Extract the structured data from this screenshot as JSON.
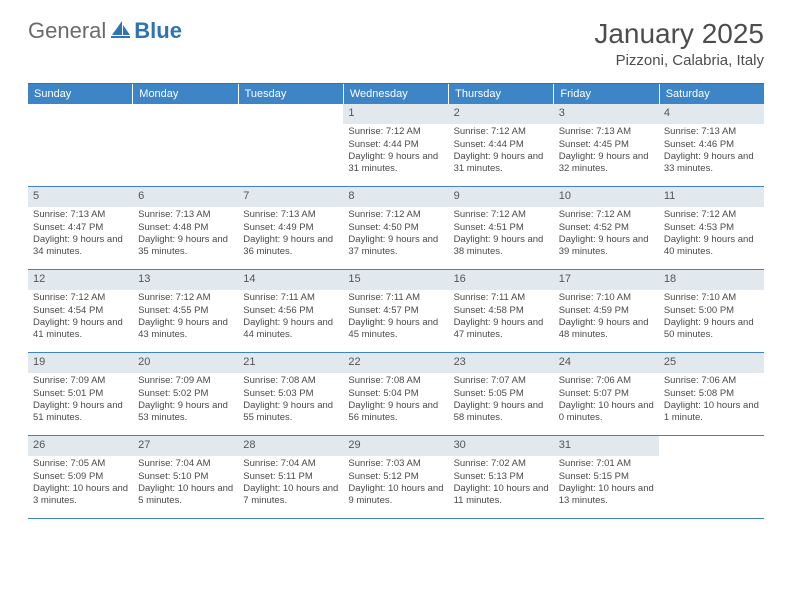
{
  "logo": {
    "general": "General",
    "blue": "Blue"
  },
  "title": "January 2025",
  "location": "Pizzoni, Calabria, Italy",
  "colors": {
    "header_bg": "#3d85c6",
    "border": "#2f73b5",
    "alt_row": "#e1e8ee",
    "text": "#4a4a4a"
  },
  "day_headers": [
    "Sunday",
    "Monday",
    "Tuesday",
    "Wednesday",
    "Thursday",
    "Friday",
    "Saturday"
  ],
  "weeks": [
    [
      null,
      null,
      null,
      {
        "n": "1",
        "sr": "7:12 AM",
        "ss": "4:44 PM",
        "dl": "9 hours and 31 minutes."
      },
      {
        "n": "2",
        "sr": "7:12 AM",
        "ss": "4:44 PM",
        "dl": "9 hours and 31 minutes."
      },
      {
        "n": "3",
        "sr": "7:13 AM",
        "ss": "4:45 PM",
        "dl": "9 hours and 32 minutes."
      },
      {
        "n": "4",
        "sr": "7:13 AM",
        "ss": "4:46 PM",
        "dl": "9 hours and 33 minutes."
      }
    ],
    [
      {
        "n": "5",
        "sr": "7:13 AM",
        "ss": "4:47 PM",
        "dl": "9 hours and 34 minutes."
      },
      {
        "n": "6",
        "sr": "7:13 AM",
        "ss": "4:48 PM",
        "dl": "9 hours and 35 minutes."
      },
      {
        "n": "7",
        "sr": "7:13 AM",
        "ss": "4:49 PM",
        "dl": "9 hours and 36 minutes."
      },
      {
        "n": "8",
        "sr": "7:12 AM",
        "ss": "4:50 PM",
        "dl": "9 hours and 37 minutes."
      },
      {
        "n": "9",
        "sr": "7:12 AM",
        "ss": "4:51 PM",
        "dl": "9 hours and 38 minutes."
      },
      {
        "n": "10",
        "sr": "7:12 AM",
        "ss": "4:52 PM",
        "dl": "9 hours and 39 minutes."
      },
      {
        "n": "11",
        "sr": "7:12 AM",
        "ss": "4:53 PM",
        "dl": "9 hours and 40 minutes."
      }
    ],
    [
      {
        "n": "12",
        "sr": "7:12 AM",
        "ss": "4:54 PM",
        "dl": "9 hours and 41 minutes."
      },
      {
        "n": "13",
        "sr": "7:12 AM",
        "ss": "4:55 PM",
        "dl": "9 hours and 43 minutes."
      },
      {
        "n": "14",
        "sr": "7:11 AM",
        "ss": "4:56 PM",
        "dl": "9 hours and 44 minutes."
      },
      {
        "n": "15",
        "sr": "7:11 AM",
        "ss": "4:57 PM",
        "dl": "9 hours and 45 minutes."
      },
      {
        "n": "16",
        "sr": "7:11 AM",
        "ss": "4:58 PM",
        "dl": "9 hours and 47 minutes."
      },
      {
        "n": "17",
        "sr": "7:10 AM",
        "ss": "4:59 PM",
        "dl": "9 hours and 48 minutes."
      },
      {
        "n": "18",
        "sr": "7:10 AM",
        "ss": "5:00 PM",
        "dl": "9 hours and 50 minutes."
      }
    ],
    [
      {
        "n": "19",
        "sr": "7:09 AM",
        "ss": "5:01 PM",
        "dl": "9 hours and 51 minutes."
      },
      {
        "n": "20",
        "sr": "7:09 AM",
        "ss": "5:02 PM",
        "dl": "9 hours and 53 minutes."
      },
      {
        "n": "21",
        "sr": "7:08 AM",
        "ss": "5:03 PM",
        "dl": "9 hours and 55 minutes."
      },
      {
        "n": "22",
        "sr": "7:08 AM",
        "ss": "5:04 PM",
        "dl": "9 hours and 56 minutes."
      },
      {
        "n": "23",
        "sr": "7:07 AM",
        "ss": "5:05 PM",
        "dl": "9 hours and 58 minutes."
      },
      {
        "n": "24",
        "sr": "7:06 AM",
        "ss": "5:07 PM",
        "dl": "10 hours and 0 minutes."
      },
      {
        "n": "25",
        "sr": "7:06 AM",
        "ss": "5:08 PM",
        "dl": "10 hours and 1 minute."
      }
    ],
    [
      {
        "n": "26",
        "sr": "7:05 AM",
        "ss": "5:09 PM",
        "dl": "10 hours and 3 minutes."
      },
      {
        "n": "27",
        "sr": "7:04 AM",
        "ss": "5:10 PM",
        "dl": "10 hours and 5 minutes."
      },
      {
        "n": "28",
        "sr": "7:04 AM",
        "ss": "5:11 PM",
        "dl": "10 hours and 7 minutes."
      },
      {
        "n": "29",
        "sr": "7:03 AM",
        "ss": "5:12 PM",
        "dl": "10 hours and 9 minutes."
      },
      {
        "n": "30",
        "sr": "7:02 AM",
        "ss": "5:13 PM",
        "dl": "10 hours and 11 minutes."
      },
      {
        "n": "31",
        "sr": "7:01 AM",
        "ss": "5:15 PM",
        "dl": "10 hours and 13 minutes."
      },
      null
    ]
  ],
  "labels": {
    "sunrise": "Sunrise:",
    "sunset": "Sunset:",
    "daylight": "Daylight:"
  }
}
